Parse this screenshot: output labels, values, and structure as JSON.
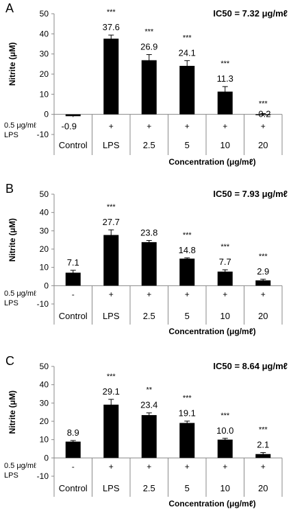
{
  "figure": {
    "panels": [
      {
        "letter": "A",
        "ic50": "IC50 = 7.32 μg/mℓ",
        "stim_label_1": "0.5 μg/mℓ",
        "stim_label_2": "LPS",
        "stim_marks": [
          "",
          "+",
          "+",
          "+",
          "+",
          "+"
        ],
        "xlabel": "Concentration (μg/mℓ)"
      },
      {
        "letter": "B",
        "ic50": "IC50 = 7.93 μg/mℓ",
        "stim_label_1": "0.5 μg/mℓ",
        "stim_label_2": "LPS",
        "stim_marks": [
          "-",
          "+",
          "+",
          "+",
          "+",
          "+"
        ],
        "xlabel": "Concentration (μg/mℓ)"
      },
      {
        "letter": "C",
        "ic50": "IC50 = 8.64 μg/mℓ",
        "stim_label_1": "0.5 μg/mℓ",
        "stim_label_2": "LPS",
        "stim_marks": [
          "-",
          "+",
          "+",
          "+",
          "+",
          "+"
        ],
        "xlabel": "Concentration (μg/mℓ)"
      }
    ]
  },
  "chart_data": [
    {
      "type": "bar",
      "categories": [
        "Control",
        "LPS",
        "2.5",
        "5",
        "10",
        "20"
      ],
      "values": [
        -0.9,
        37.6,
        26.9,
        24.1,
        11.3,
        -0.2
      ],
      "value_labels": [
        "-0.9",
        "37.6",
        "26.9",
        "24.1",
        "11.3",
        "-0.2"
      ],
      "errors": [
        0.4,
        1.8,
        2.8,
        2.6,
        2.5,
        0.6
      ],
      "significance": [
        "",
        "***",
        "***",
        "***",
        "***",
        "***"
      ],
      "ylabel": "Nitrite (μM)",
      "xlabel": "Concentration (μg/mℓ)",
      "ylim": [
        -10,
        50
      ],
      "yticks": [
        -10,
        0,
        10,
        20,
        30,
        40,
        50
      ],
      "grid": false,
      "bar_color": "#000000"
    },
    {
      "type": "bar",
      "categories": [
        "Control",
        "LPS",
        "2.5",
        "5",
        "10",
        "20"
      ],
      "values": [
        7.1,
        27.7,
        23.8,
        14.8,
        7.7,
        2.9
      ],
      "value_labels": [
        "7.1",
        "27.7",
        "23.8",
        "14.8",
        "7.7",
        "2.9"
      ],
      "errors": [
        1.3,
        2.8,
        0.9,
        0.4,
        1.0,
        0.6
      ],
      "significance": [
        "",
        "***",
        "",
        "***",
        "***",
        "***"
      ],
      "ylabel": "Nitrite (μM)",
      "xlabel": "Concentration (μg/mℓ)",
      "ylim": [
        -10,
        50
      ],
      "yticks": [
        -10,
        0,
        10,
        20,
        30,
        40,
        50
      ],
      "grid": false,
      "bar_color": "#000000"
    },
    {
      "type": "bar",
      "categories": [
        "Control",
        "LPS",
        "2.5",
        "5",
        "10",
        "20"
      ],
      "values": [
        8.9,
        29.1,
        23.4,
        19.1,
        10.0,
        2.1
      ],
      "value_labels": [
        "8.9",
        "29.1",
        "23.4",
        "19.1",
        "10.0",
        "2.1"
      ],
      "errors": [
        0.6,
        2.9,
        1.2,
        1.0,
        0.7,
        0.8
      ],
      "significance": [
        "",
        "***",
        "**",
        "***",
        "***",
        "***"
      ],
      "ylabel": "Nitrite (μM)",
      "xlabel": "Concentration (μg/mℓ)",
      "ylim": [
        -10,
        50
      ],
      "yticks": [
        -10,
        0,
        10,
        20,
        30,
        40,
        50
      ],
      "grid": false,
      "bar_color": "#000000"
    }
  ]
}
